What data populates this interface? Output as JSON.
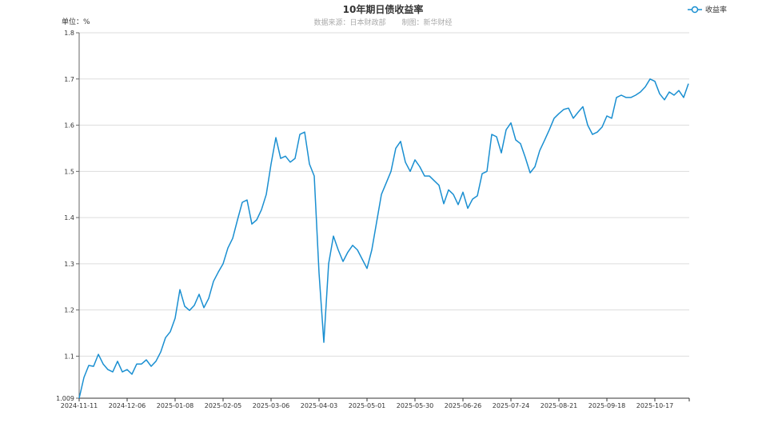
{
  "chart_data": {
    "type": "line",
    "title": "10年期日债收益率",
    "subtitle": [
      "数据来源：日本财政部",
      "制图：新华财经"
    ],
    "ylabel": "单位：%",
    "legend": {
      "entries": [
        "收益率"
      ],
      "placement": "top-right"
    },
    "color": "#1a8fd1",
    "grid": true,
    "ylim": [
      1.009,
      1.8
    ],
    "y_ticks": [
      "1.009",
      "1.1",
      "1.2",
      "1.3",
      "1.4",
      "1.5",
      "1.6",
      "1.7",
      "1.8"
    ],
    "x_tick_labels": [
      "2024-11-11",
      "2024-12-06",
      "2025-01-08",
      "2025-02-05",
      "2025-03-06",
      "2025-04-03",
      "2025-05-01",
      "2025-05-30",
      "2025-06-26",
      "2025-07-24",
      "2025-08-21",
      "2025-09-18",
      "2025-10-17"
    ],
    "series": [
      {
        "name": "收益率",
        "values": [
          1.009,
          1.054,
          1.08,
          1.078,
          1.104,
          1.083,
          1.071,
          1.066,
          1.089,
          1.066,
          1.071,
          1.061,
          1.083,
          1.083,
          1.092,
          1.078,
          1.089,
          1.109,
          1.14,
          1.153,
          1.182,
          1.244,
          1.208,
          1.199,
          1.21,
          1.234,
          1.205,
          1.225,
          1.262,
          1.282,
          1.3,
          1.334,
          1.355,
          1.395,
          1.433,
          1.438,
          1.386,
          1.395,
          1.417,
          1.45,
          1.516,
          1.573,
          1.528,
          1.533,
          1.52,
          1.528,
          1.58,
          1.585,
          1.516,
          1.49,
          1.28,
          1.13,
          1.3,
          1.36,
          1.33,
          1.305,
          1.325,
          1.34,
          1.33,
          1.31,
          1.29,
          1.33,
          1.39,
          1.45,
          1.475,
          1.5,
          1.55,
          1.565,
          1.52,
          1.5,
          1.525,
          1.51,
          1.49,
          1.49,
          1.48,
          1.47,
          1.43,
          1.46,
          1.45,
          1.428,
          1.455,
          1.42,
          1.44,
          1.447,
          1.495,
          1.5,
          1.58,
          1.575,
          1.54,
          1.59,
          1.605,
          1.568,
          1.56,
          1.53,
          1.497,
          1.51,
          1.545,
          1.567,
          1.59,
          1.615,
          1.625,
          1.634,
          1.637,
          1.615,
          1.628,
          1.64,
          1.6,
          1.58,
          1.585,
          1.596,
          1.62,
          1.615,
          1.66,
          1.665,
          1.66,
          1.66,
          1.665,
          1.672,
          1.683,
          1.7,
          1.695,
          1.668,
          1.655,
          1.672,
          1.665,
          1.675,
          1.66,
          1.69
        ]
      }
    ]
  }
}
